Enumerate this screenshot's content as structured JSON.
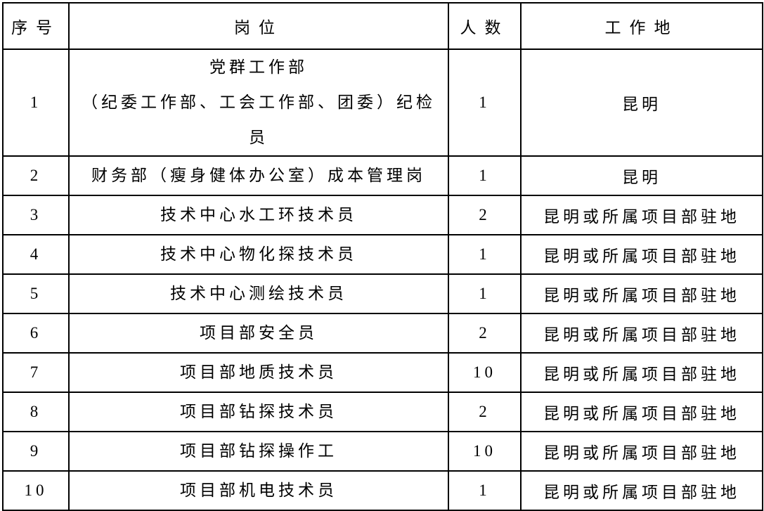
{
  "table": {
    "headers": {
      "no": "序号",
      "position": "岗位",
      "count": "人数",
      "location": "工作地"
    },
    "rows": [
      {
        "no": "1",
        "position_lines": [
          "党群工作部",
          "（纪委工作部、工会工作部、团委）纪检员"
        ],
        "count": "1",
        "location": "昆明"
      },
      {
        "no": "2",
        "position_lines": [
          "财务部（瘦身健体办公室）成本管理岗"
        ],
        "count": "1",
        "location": "昆明"
      },
      {
        "no": "3",
        "position_lines": [
          "技术中心水工环技术员"
        ],
        "count": "2",
        "location": "昆明或所属项目部驻地"
      },
      {
        "no": "4",
        "position_lines": [
          "技术中心物化探技术员"
        ],
        "count": "1",
        "location": "昆明或所属项目部驻地"
      },
      {
        "no": "5",
        "position_lines": [
          "技术中心测绘技术员"
        ],
        "count": "1",
        "location": "昆明或所属项目部驻地"
      },
      {
        "no": "6",
        "position_lines": [
          "项目部安全员"
        ],
        "count": "2",
        "location": "昆明或所属项目部驻地"
      },
      {
        "no": "7",
        "position_lines": [
          "项目部地质技术员"
        ],
        "count": "10",
        "location": "昆明或所属项目部驻地"
      },
      {
        "no": "8",
        "position_lines": [
          "项目部钻探技术员"
        ],
        "count": "2",
        "location": "昆明或所属项目部驻地"
      },
      {
        "no": "9",
        "position_lines": [
          "项目部钻探操作工"
        ],
        "count": "10",
        "location": "昆明或所属项目部驻地"
      },
      {
        "no": "10",
        "position_lines": [
          "项目部机电技术员"
        ],
        "count": "1",
        "location": "昆明或所属项目部驻地"
      }
    ],
    "colors": {
      "border": "#000000",
      "text": "#000000",
      "background": "#ffffff"
    }
  }
}
